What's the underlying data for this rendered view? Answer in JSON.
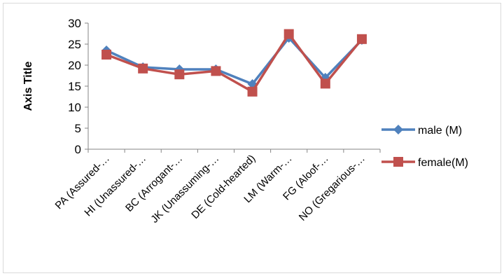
{
  "chart_data": {
    "type": "line",
    "title": "",
    "xlabel": "",
    "ylabel": "Axis Title",
    "ylim": [
      0,
      30
    ],
    "yticks": [
      0,
      5,
      10,
      15,
      20,
      25,
      30
    ],
    "grid": false,
    "legend": "right",
    "categories": [
      "PA (Assured-…",
      "HI (Unassured-…",
      "BC (Arrogant-…",
      "JK (Unassuming-…",
      "DE (Cold-hearted)",
      "LM (Warm-…",
      "FG (Aloof-…",
      "NO (Gregarious-…"
    ],
    "series": [
      {
        "name": "male (M)",
        "values": [
          23.5,
          19.5,
          19.0,
          19.0,
          15.5,
          26.5,
          17.0,
          26.0
        ],
        "color": "#4F81BD",
        "marker": "diamond"
      },
      {
        "name": "female(M)",
        "values": [
          22.5,
          19.2,
          17.8,
          18.6,
          13.7,
          27.4,
          15.6,
          26.2
        ],
        "color": "#C0504D",
        "marker": "square"
      }
    ]
  }
}
